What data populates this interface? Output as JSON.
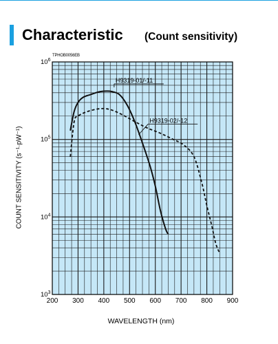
{
  "page": {
    "title": "Characteristic",
    "subtitle": "(Count sensitivity)",
    "chart_code": "TPHOB0056EB",
    "accent_color": "#1aa0e0"
  },
  "chart_data": {
    "type": "line",
    "xlabel": "WAVELENGTH (nm)",
    "ylabel": "COUNT SENSITIVITY (s⁻¹·pW⁻¹)",
    "xlim": [
      200,
      900
    ],
    "ylim": [
      1000,
      1000000
    ],
    "yscale": "log",
    "xticks": [
      200,
      300,
      400,
      500,
      600,
      700,
      800,
      900
    ],
    "yticks": [
      {
        "value": 1000,
        "base": "10",
        "exp": "3"
      },
      {
        "value": 10000,
        "base": "10",
        "exp": "4"
      },
      {
        "value": 100000,
        "base": "10",
        "exp": "5"
      },
      {
        "value": 1000000,
        "base": "10",
        "exp": "6"
      }
    ],
    "grid": true,
    "plot_background": "#c5e7f7",
    "series": [
      {
        "name": "H9319-01/-11",
        "style": "solid",
        "x": [
          270,
          285,
          300,
          320,
          350,
          380,
          410,
          430,
          460,
          490,
          520,
          550,
          580,
          600,
          620,
          640,
          650
        ],
        "y": [
          130000,
          230000,
          300000,
          350000,
          380000,
          410000,
          420000,
          415000,
          380000,
          280000,
          170000,
          90000,
          45000,
          25000,
          12000,
          7000,
          6000
        ]
      },
      {
        "name": "H9319-02/-12",
        "style": "dashed",
        "x": [
          270,
          285,
          300,
          330,
          370,
          400,
          430,
          470,
          520,
          570,
          620,
          670,
          710,
          750,
          780,
          800,
          820,
          835,
          850
        ],
        "y": [
          60000,
          170000,
          200000,
          225000,
          245000,
          250000,
          240000,
          210000,
          170000,
          140000,
          120000,
          100000,
          85000,
          60000,
          28000,
          14000,
          7500,
          4500,
          3400
        ]
      }
    ],
    "annotations": [
      {
        "text": "H9319-01/-11",
        "series": 0
      },
      {
        "text": "H9319-02/-12",
        "series": 1
      }
    ]
  }
}
